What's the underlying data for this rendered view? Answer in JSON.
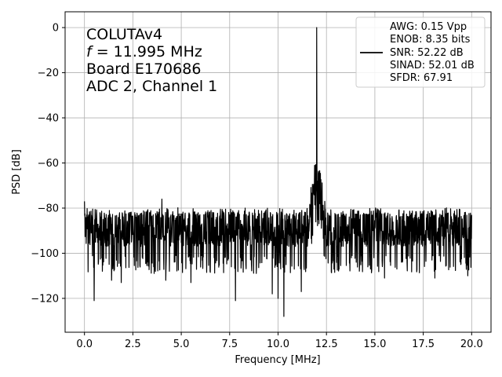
{
  "chart_data": {
    "type": "line",
    "title": "",
    "xlabel": "Frequency [MHz]",
    "ylabel": "PSD [dB]",
    "xlim": [
      -1.0,
      21.0
    ],
    "ylim": [
      -135,
      7
    ],
    "xticks": [
      0.0,
      2.5,
      5.0,
      7.5,
      10.0,
      12.5,
      15.0,
      17.5,
      20.0
    ],
    "xtick_labels": [
      "0.0",
      "2.5",
      "5.0",
      "7.5",
      "10.0",
      "12.5",
      "15.0",
      "17.5",
      "20.0"
    ],
    "yticks": [
      0,
      -20,
      -40,
      -60,
      -80,
      -100,
      -120
    ],
    "ytick_labels": [
      "0",
      "−20",
      "−40",
      "−60",
      "−80",
      "−100",
      "−120"
    ],
    "grid": true,
    "line_color": "#000000",
    "annotation_lines": [
      "COLUTAv4",
      "= 11.995 MHz",
      "Board E170686",
      "ADC 2, Channel 1"
    ],
    "annotation_symbol": "f",
    "legend": {
      "placement": "top-right",
      "entries": [
        "AWG: 0.15 Vpp",
        "ENOB: 8.35 bits",
        "SNR: 52.22 dB",
        "SINAD: 52.01 dB",
        "SFDR: 67.91"
      ]
    },
    "series": [
      {
        "x_start": 0.0,
        "x_end": 20.0,
        "noise_floor_mean": -92,
        "noise_floor_range": [
          -105,
          -83
        ],
        "peaks": [
          {
            "x": 0.0,
            "y": -77
          },
          {
            "x": 0.05,
            "y": -88
          },
          {
            "x": 0.5,
            "y": -121
          },
          {
            "x": 0.85,
            "y": -84
          },
          {
            "x": 1.4,
            "y": -112
          },
          {
            "x": 1.9,
            "y": -113
          },
          {
            "x": 2.6,
            "y": -82
          },
          {
            "x": 4.0,
            "y": -76
          },
          {
            "x": 4.2,
            "y": -112
          },
          {
            "x": 5.5,
            "y": -113
          },
          {
            "x": 7.8,
            "y": -121
          },
          {
            "x": 8.3,
            "y": -80
          },
          {
            "x": 9.7,
            "y": -118
          },
          {
            "x": 10.0,
            "y": -120
          },
          {
            "x": 10.3,
            "y": -128
          },
          {
            "x": 11.2,
            "y": -117
          },
          {
            "x": 11.995,
            "y": 0
          },
          {
            "x": 12.05,
            "y": -68
          },
          {
            "x": 15.5,
            "y": -111
          },
          {
            "x": 18.1,
            "y": -111
          },
          {
            "x": 19.8,
            "y": -110
          },
          {
            "x": 20.0,
            "y": -83
          }
        ],
        "spur_bump": {
          "x_center": 12.0,
          "width": 0.45,
          "peak": -70
        }
      }
    ]
  }
}
